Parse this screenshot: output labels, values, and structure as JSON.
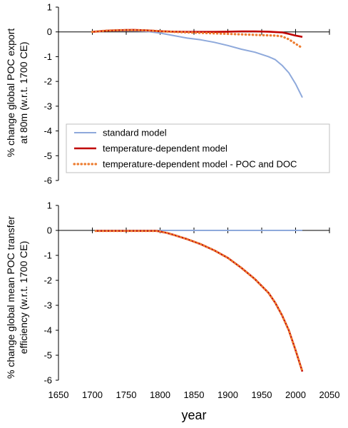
{
  "chart_data": [
    {
      "type": "line",
      "ylabel": [
        "% change global POC export",
        "at 80m (w.r.t. 1700 CE)"
      ],
      "xlim": [
        1650,
        2050
      ],
      "ylim": [
        -6,
        1
      ],
      "yticks": [
        1,
        0,
        -1,
        -2,
        -3,
        -4,
        -5,
        -6
      ],
      "grid": false,
      "legend": "inside-bottom",
      "series": [
        {
          "name": "standard model",
          "color": "#8EA9DB",
          "style": "solid",
          "x": [
            1700,
            1720,
            1740,
            1760,
            1780,
            1800,
            1820,
            1840,
            1860,
            1880,
            1900,
            1920,
            1940,
            1960,
            1970,
            1980,
            1990,
            2000,
            2010
          ],
          "y": [
            0,
            0.04,
            0.05,
            0.04,
            0.02,
            -0.05,
            -0.15,
            -0.25,
            -0.32,
            -0.42,
            -0.55,
            -0.7,
            -0.82,
            -1.0,
            -1.12,
            -1.35,
            -1.65,
            -2.1,
            -2.65
          ]
        },
        {
          "name": "temperature-dependent model",
          "color": "#C00000",
          "style": "solid",
          "x": [
            1700,
            1720,
            1740,
            1760,
            1780,
            1800,
            1820,
            1840,
            1860,
            1880,
            1900,
            1920,
            1940,
            1960,
            1980,
            1990,
            2000,
            2010
          ],
          "y": [
            0,
            0.05,
            0.07,
            0.08,
            0.06,
            0.03,
            0.01,
            0,
            0,
            0,
            0.01,
            0.02,
            0.02,
            0.01,
            -0.02,
            -0.08,
            -0.15,
            -0.2
          ]
        },
        {
          "name": "temperature-dependent model - POC and DOC",
          "color": "#ED7D31",
          "style": "dotted",
          "x": [
            1700,
            1720,
            1740,
            1760,
            1780,
            1800,
            1820,
            1840,
            1860,
            1880,
            1900,
            1920,
            1940,
            1960,
            1970,
            1980,
            1990,
            2000,
            2010
          ],
          "y": [
            0,
            0.05,
            0.07,
            0.07,
            0.06,
            0.03,
            0,
            -0.02,
            -0.04,
            -0.06,
            -0.08,
            -0.1,
            -0.12,
            -0.14,
            -0.15,
            -0.18,
            -0.3,
            -0.48,
            -0.65
          ]
        }
      ]
    },
    {
      "type": "line",
      "ylabel": [
        "% change global mean POC transfer",
        "efficiency (w.r.t. 1700 CE)"
      ],
      "xlabel": "year",
      "xlim": [
        1650,
        2050
      ],
      "ylim": [
        -6,
        1
      ],
      "yticks": [
        1,
        0,
        -1,
        -2,
        -3,
        -4,
        -5,
        -6
      ],
      "xticks": [
        1650,
        1700,
        1750,
        1800,
        1850,
        1900,
        1950,
        2000,
        2050
      ],
      "grid": false,
      "series": [
        {
          "name": "standard model",
          "color": "#8EA9DB",
          "style": "solid",
          "x": [
            1705,
            2010
          ],
          "y": [
            0,
            0
          ]
        },
        {
          "name": "temperature-dependent model",
          "color": "#C00000",
          "style": "solid",
          "x": [
            1705,
            1720,
            1740,
            1760,
            1780,
            1795,
            1810,
            1820,
            1840,
            1860,
            1880,
            1900,
            1920,
            1940,
            1960,
            1970,
            1980,
            1990,
            2000,
            2010
          ],
          "y": [
            -0.02,
            -0.02,
            -0.02,
            -0.02,
            -0.02,
            -0.02,
            -0.1,
            -0.18,
            -0.35,
            -0.55,
            -0.8,
            -1.1,
            -1.5,
            -1.95,
            -2.5,
            -2.9,
            -3.4,
            -4.0,
            -4.8,
            -5.65
          ]
        },
        {
          "name": "temperature-dependent model - POC and DOC",
          "color": "#ED7D31",
          "style": "dotted",
          "x": [
            1705,
            1720,
            1740,
            1760,
            1780,
            1795,
            1810,
            1820,
            1840,
            1860,
            1880,
            1900,
            1920,
            1940,
            1960,
            1970,
            1980,
            1990,
            2000,
            2010
          ],
          "y": [
            -0.02,
            -0.02,
            -0.02,
            -0.02,
            -0.02,
            -0.02,
            -0.1,
            -0.18,
            -0.35,
            -0.55,
            -0.8,
            -1.1,
            -1.5,
            -1.95,
            -2.5,
            -2.9,
            -3.4,
            -4.0,
            -4.8,
            -5.65
          ]
        }
      ]
    }
  ]
}
